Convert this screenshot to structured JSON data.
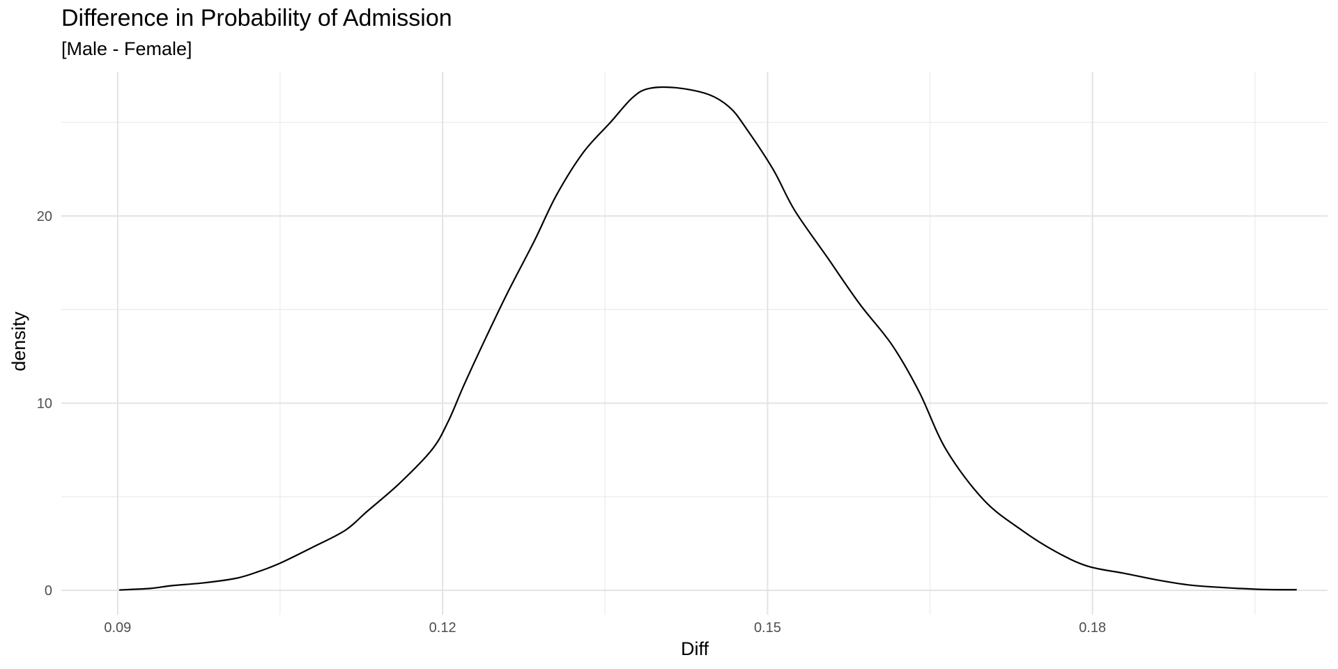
{
  "chart_data": {
    "type": "line",
    "geom": "density",
    "title": "Difference in Probability of Admission",
    "subtitle": "[Male - Female]",
    "xlabel": "Diff",
    "ylabel": "density",
    "xlim": [
      0.0848,
      0.2017
    ],
    "ylim": [
      -1.3,
      27.7
    ],
    "x_ticks": [
      0.09,
      0.12,
      0.15,
      0.18
    ],
    "x_tick_labels": [
      "0.09",
      "0.12",
      "0.15",
      "0.18"
    ],
    "x_minor_ticks": [
      0.105,
      0.135,
      0.165,
      0.195
    ],
    "y_ticks": [
      0,
      10,
      20
    ],
    "y_tick_labels": [
      "0",
      "10",
      "20"
    ],
    "y_minor_ticks": [
      5,
      15,
      25
    ],
    "grid": true,
    "legend": "none",
    "series": [
      {
        "name": "density",
        "color": "#000000",
        "x": [
          0.0902,
          0.093,
          0.095,
          0.098,
          0.101,
          0.103,
          0.105,
          0.108,
          0.111,
          0.113,
          0.116,
          0.119,
          0.1205,
          0.122,
          0.124,
          0.126,
          0.1285,
          0.1305,
          0.133,
          0.1355,
          0.1375,
          0.139,
          0.1415,
          0.1445,
          0.1465,
          0.148,
          0.1505,
          0.1525,
          0.1555,
          0.1585,
          0.1615,
          0.164,
          0.1665,
          0.17,
          0.1735,
          0.1765,
          0.1795,
          0.183,
          0.186,
          0.189,
          0.192,
          0.1955,
          0.1988
        ],
        "y": [
          0.02,
          0.1,
          0.25,
          0.4,
          0.65,
          1.0,
          1.45,
          2.3,
          3.2,
          4.2,
          5.7,
          7.5,
          9.0,
          11.0,
          13.5,
          15.9,
          18.7,
          21.1,
          23.4,
          25.0,
          26.3,
          26.8,
          26.85,
          26.5,
          25.8,
          24.7,
          22.5,
          20.3,
          17.8,
          15.3,
          13.1,
          10.6,
          7.5,
          4.8,
          3.2,
          2.1,
          1.3,
          0.9,
          0.55,
          0.28,
          0.15,
          0.05,
          0.03
        ]
      }
    ]
  }
}
